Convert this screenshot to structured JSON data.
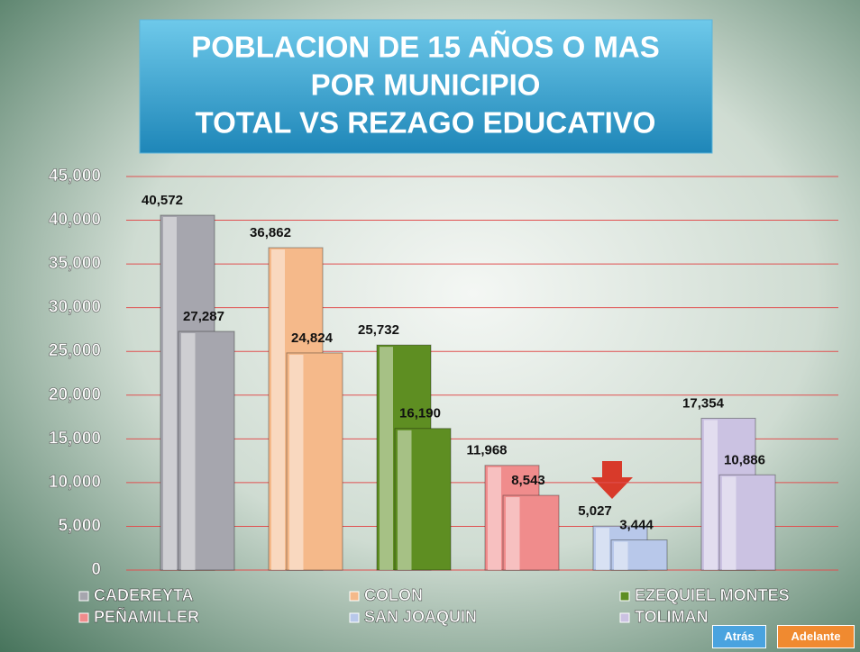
{
  "chart_data": {
    "type": "bar",
    "title": [
      "POBLACION DE 15 AÑOS O MAS",
      "POR MUNICIPIO",
      "TOTAL VS REZAGO EDUCATIVO"
    ],
    "categories": [
      "CADEREYTA",
      "COLON",
      "EZEQUIEL MONTES",
      "PEÑAMILLER",
      "SAN JOAQUIN",
      "TOLIMAN"
    ],
    "colors": [
      "#a6a6ae",
      "#f5b98a",
      "#5e8e22",
      "#f08c8c",
      "#b8c8ea",
      "#cbc2e2"
    ],
    "series": [
      {
        "values": [
          40572,
          36862,
          25732,
          11968,
          5027,
          17354
        ],
        "value_labels": [
          "40,572",
          "36,862",
          "25,732",
          "11,968",
          "5,027",
          "17,354"
        ]
      },
      {
        "values": [
          27287,
          24824,
          16190,
          8543,
          3444,
          10886
        ],
        "value_labels": [
          "27,287",
          "24,824",
          "16,190",
          "8,543",
          "3,444",
          "10,886"
        ]
      }
    ],
    "ylim": [
      0,
      45000
    ],
    "yticks": [
      0,
      {
        "value": 5000,
        "label": "5,000"
      },
      {
        "value": 10000,
        "label": "10,000"
      },
      {
        "value": 15000,
        "label": "15,000"
      },
      {
        "value": 20000,
        "label": "20,000"
      },
      {
        "value": 25000,
        "label": "25,000"
      },
      {
        "value": 30000,
        "label": "30,000"
      },
      {
        "value": 35000,
        "label": "35,000"
      },
      {
        "value": 40000,
        "label": "40,000"
      },
      {
        "value": 45000,
        "label": "45,000"
      }
    ],
    "grid": true,
    "grid_color": "#e05050"
  },
  "buttons": [
    "Atrás",
    "Adelante"
  ]
}
